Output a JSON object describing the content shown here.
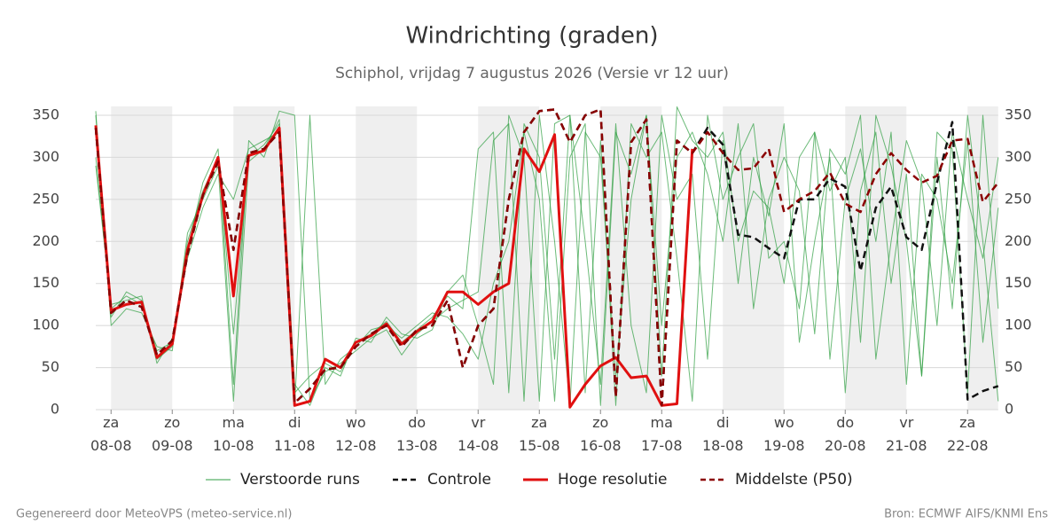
{
  "chart_data": {
    "type": "line",
    "title": "Windrichting (graden)",
    "subtitle": "Schiphol, vrijdag  7 augustus 2026 (Versie vr 12 uur)",
    "footer_left": "Gegenereerd door MeteoVPS (meteo-service.nl)",
    "footer_right": "Bron: ECMWF AIFS/KNMI Ens",
    "categories": [
      null,
      "za\n08-08",
      null,
      null,
      null,
      "zo\n09-08",
      null,
      null,
      null,
      "ma\n10-08",
      null,
      null,
      null,
      "di\n11-08",
      null,
      null,
      null,
      "wo\n12-08",
      null,
      null,
      null,
      "do\n13-08",
      null,
      null,
      null,
      "vr\n14-08",
      null,
      null,
      null,
      "za\n15-08",
      null,
      null,
      null,
      "zo\n16-08",
      null,
      null,
      null,
      "ma\n17-08",
      null,
      null,
      null,
      "di\n18-08",
      null,
      null,
      null,
      "wo\n19-08",
      null,
      null,
      null,
      "do\n20-08",
      null,
      null,
      null,
      "vr\n21-08",
      null,
      null,
      null,
      "za\n22-08",
      null,
      null
    ],
    "ylim": [
      0,
      350
    ],
    "yticks": [
      0,
      50,
      100,
      150,
      200,
      250,
      300,
      350
    ],
    "grid": true,
    "series": [
      {
        "name": "Verstoorde runs",
        "color": "#2e9e40",
        "style": "thin",
        "values": [
          300,
          120,
          135,
          125,
          70,
          80,
          200,
          260,
          300,
          90,
          300,
          315,
          340,
          20,
          40,
          55,
          45,
          80,
          90,
          105,
          80,
          95,
          110,
          135,
          120,
          310,
          330,
          20,
          340,
          300,
          60,
          350,
          200,
          30,
          340,
          100,
          20,
          350,
          250,
          280,
          60,
          320,
          150,
          300,
          230,
          340,
          80,
          200,
          300,
          20,
          260,
          330,
          150,
          280,
          40,
          300,
          120,
          350,
          200,
          10
        ]
      },
      {
        "name": "Verstoorde runs",
        "color": "#2e9e40",
        "style": "thin",
        "values": [
          350,
          110,
          140,
          130,
          60,
          75,
          190,
          270,
          310,
          30,
          320,
          300,
          355,
          350,
          10,
          45,
          55,
          70,
          85,
          95,
          65,
          90,
          105,
          120,
          130,
          140,
          320,
          340,
          10,
          350,
          200,
          5,
          330,
          300,
          40,
          250,
          350,
          100,
          300,
          330,
          280,
          200,
          340,
          120,
          250,
          300,
          260,
          90,
          310,
          280,
          350,
          60,
          200,
          320,
          270,
          100,
          330,
          250,
          180,
          300
        ]
      },
      {
        "name": "Verstoorde runs",
        "color": "#2e9e40",
        "style": "thin",
        "values": [
          290,
          125,
          130,
          135,
          55,
          85,
          180,
          240,
          280,
          250,
          310,
          320,
          330,
          5,
          350,
          30,
          60,
          75,
          95,
          100,
          85,
          100,
          115,
          110,
          90,
          60,
          150,
          200,
          330,
          250,
          10,
          300,
          340,
          5,
          330,
          280,
          350,
          40,
          360,
          320,
          300,
          330,
          200,
          260,
          240,
          150,
          300,
          330,
          60,
          250,
          310,
          200,
          330,
          30,
          280,
          250,
          150,
          320,
          80,
          240
        ]
      },
      {
        "name": "Verstoorde runs",
        "color": "#2e9e40",
        "style": "thin",
        "values": [
          355,
          100,
          120,
          115,
          75,
          70,
          210,
          250,
          290,
          10,
          295,
          310,
          345,
          30,
          5,
          50,
          40,
          85,
          80,
          110,
          90,
          85,
          95,
          140,
          160,
          100,
          30,
          350,
          300,
          10,
          340,
          350,
          20,
          320,
          5,
          340,
          300,
          330,
          180,
          10,
          350,
          250,
          300,
          340,
          180,
          200,
          120,
          330,
          260,
          300,
          80,
          350,
          290,
          200,
          40,
          330,
          310,
          20,
          350,
          120
        ]
      },
      {
        "name": "Controle",
        "color": "#111111",
        "style": "dashed",
        "values": [
          335,
          115,
          130,
          122,
          65,
          82,
          185,
          255,
          295,
          190,
          305,
          310,
          330,
          8,
          25,
          48,
          50,
          75,
          90,
          100,
          75,
          95,
          100,
          130,
          50,
          100,
          120,
          250,
          330,
          355,
          357,
          318,
          350,
          357,
          15,
          318,
          345,
          5,
          320,
          305,
          335,
          315,
          208,
          205,
          192,
          180,
          250,
          250,
          275,
          265,
          165,
          240,
          265,
          205,
          190,
          270,
          342,
          12,
          22,
          28
        ]
      },
      {
        "name": "Hoge resolutie",
        "color": "#e01010",
        "style": "thick",
        "values": [
          338,
          118,
          125,
          128,
          62,
          78,
          190,
          255,
          300,
          135,
          302,
          308,
          335,
          5,
          10,
          60,
          50,
          80,
          88,
          102,
          78,
          93,
          105,
          140,
          140,
          125,
          140,
          150,
          310,
          283,
          327,
          3,
          30,
          52,
          62,
          38,
          40,
          5,
          7,
          310,
          null,
          null,
          null,
          null,
          null,
          null,
          null,
          null,
          null,
          null,
          null,
          null,
          null,
          null,
          null,
          null,
          null,
          null,
          null,
          null
        ]
      },
      {
        "name": "Middelste (P50)",
        "color": "#8b0000",
        "style": "dashed",
        "values": [
          335,
          115,
          130,
          122,
          65,
          82,
          185,
          255,
          295,
          190,
          305,
          310,
          330,
          8,
          25,
          48,
          50,
          75,
          90,
          100,
          75,
          95,
          100,
          130,
          50,
          100,
          120,
          250,
          330,
          355,
          357,
          318,
          350,
          357,
          15,
          318,
          345,
          5,
          320,
          305,
          330,
          305,
          285,
          287,
          310,
          235,
          250,
          260,
          282,
          245,
          235,
          280,
          305,
          285,
          270,
          278,
          320,
          322,
          247,
          270
        ]
      }
    ]
  }
}
